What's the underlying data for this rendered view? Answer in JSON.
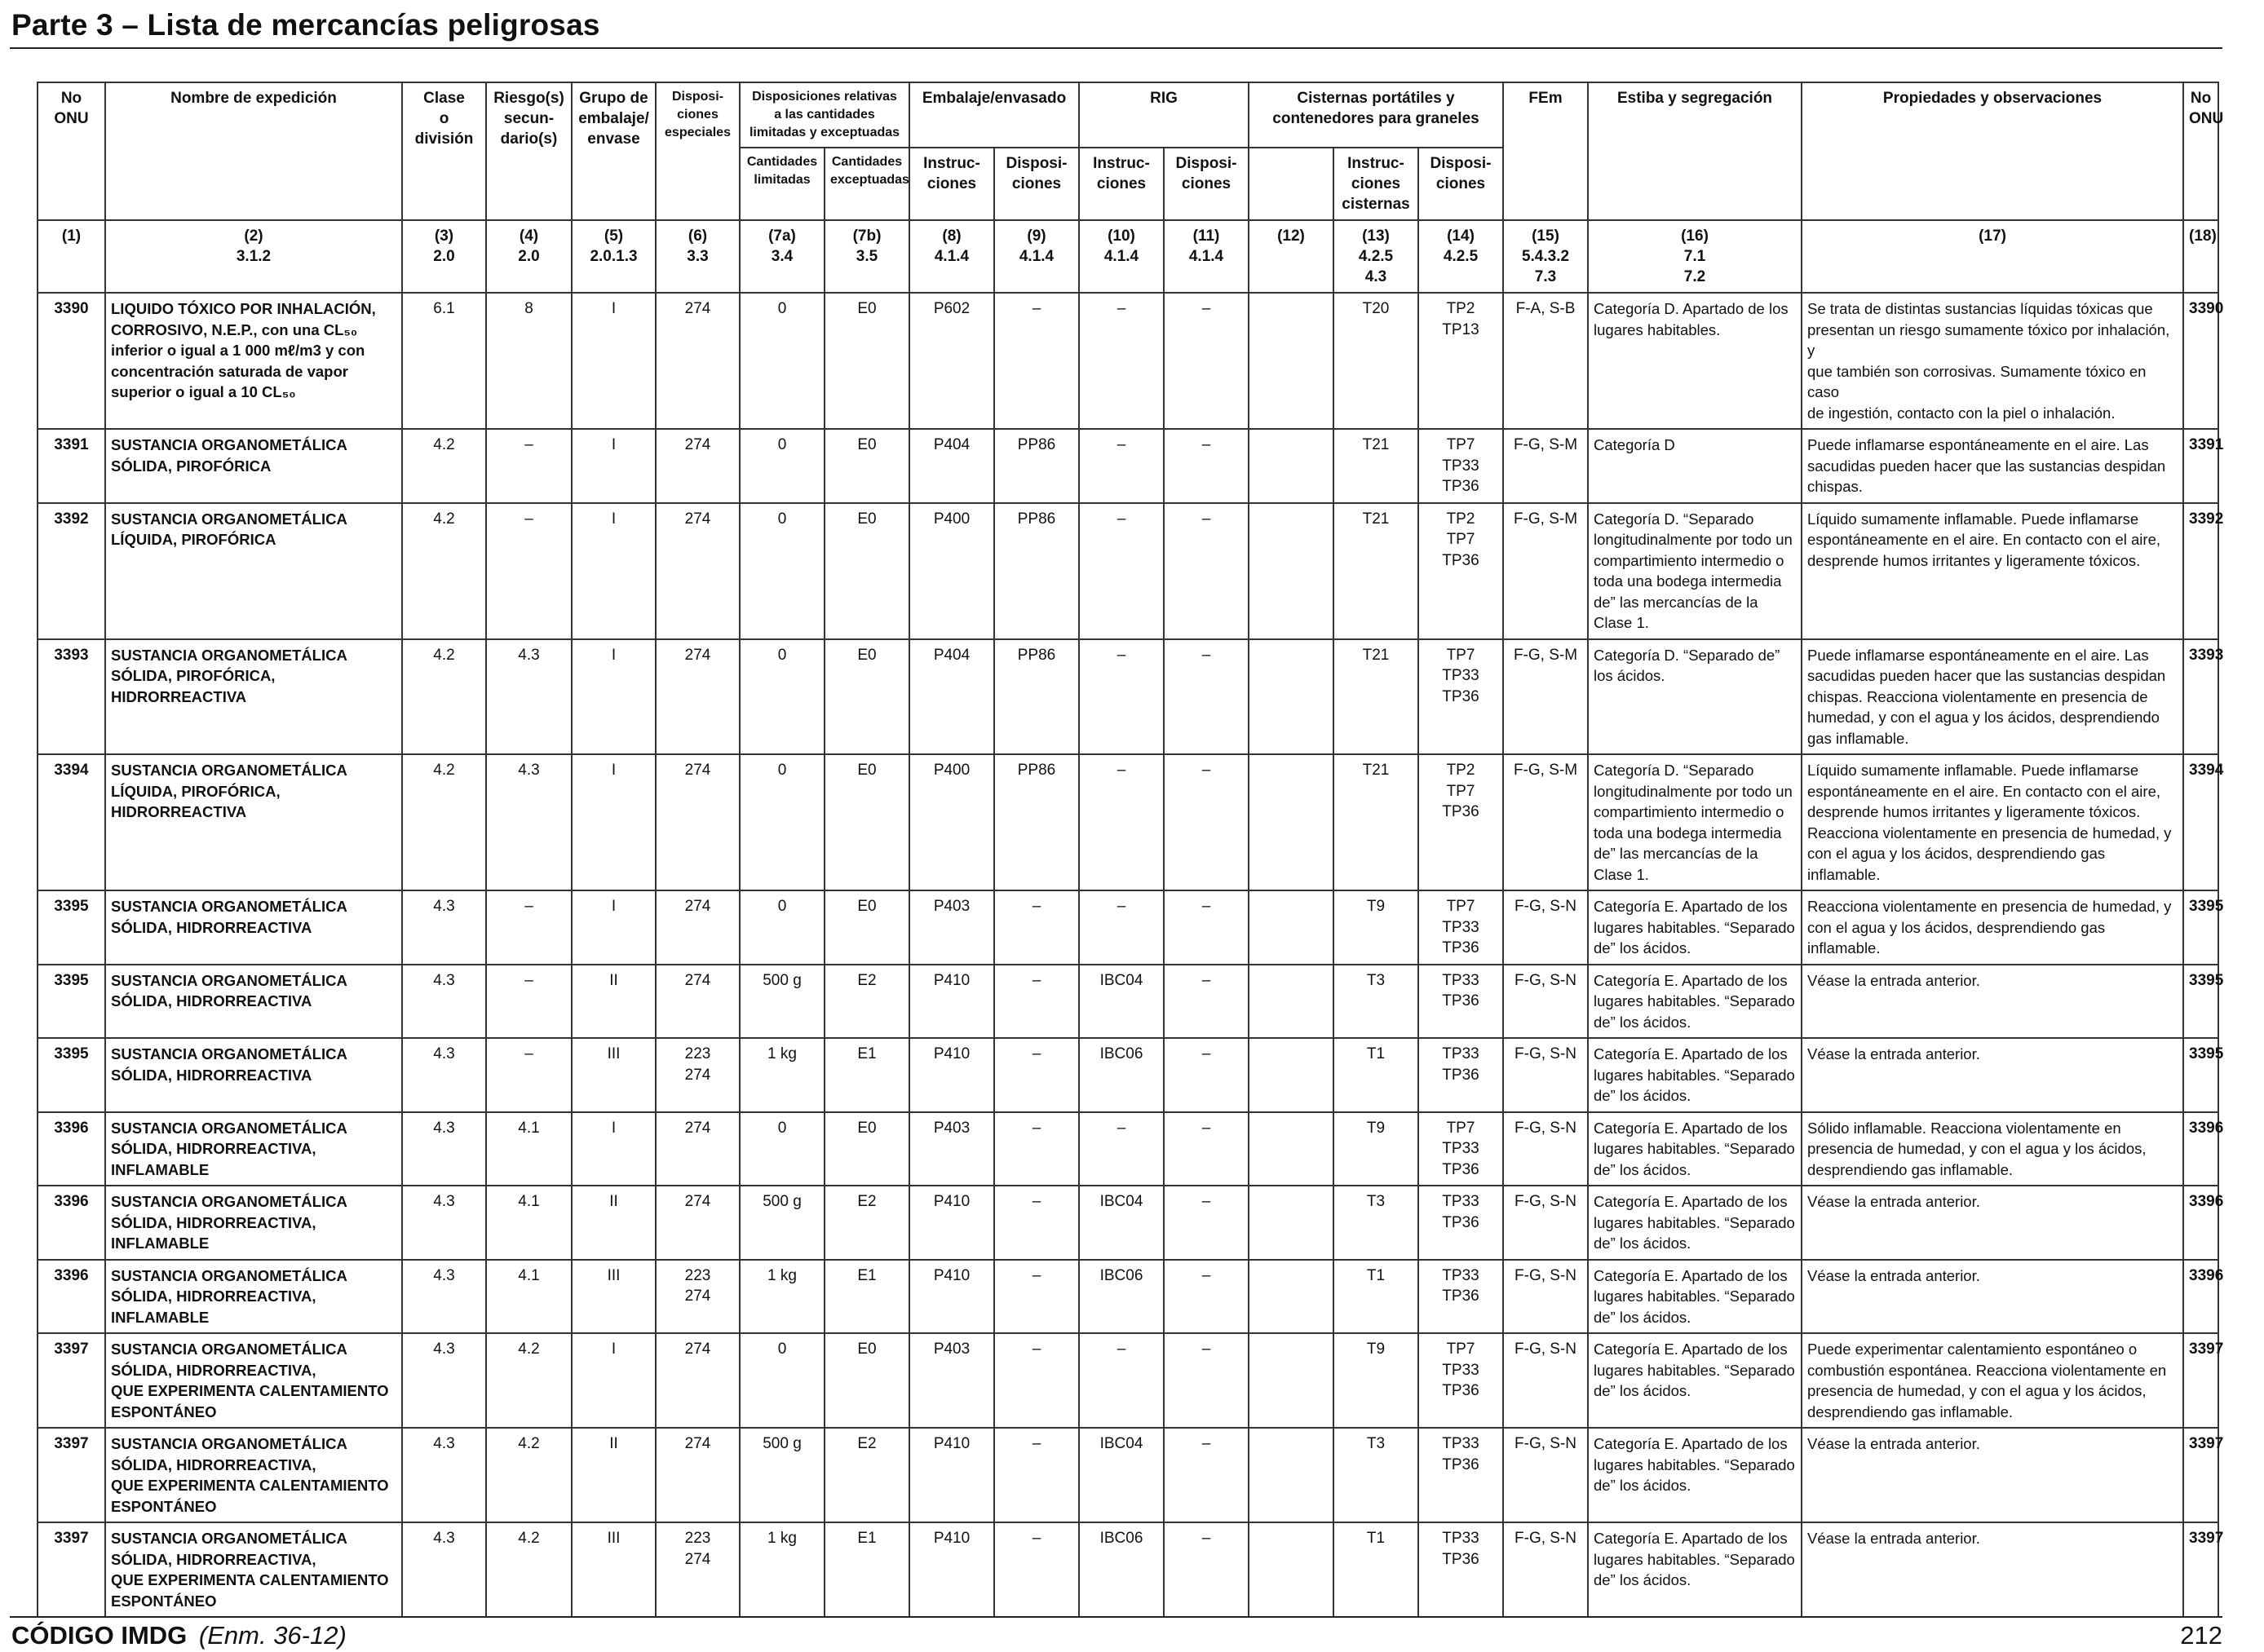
{
  "title": "Parte 3 – Lista de mercancías peligrosas",
  "header": {
    "row1": [
      "No\nONU",
      "Nombre de expedición",
      "Clase\no\ndivisión",
      "Riesgo(s)\nsecun-\ndario(s)",
      "Grupo de\nembalaje/\nenvase",
      "Disposi-\nciones\nespeciales",
      "Disposiciones relativas\na las cantidades\nlimitadas y exceptuadas",
      "Embalaje/envasado",
      "RIG",
      "Cisternas portátiles y\ncontenedores para graneles",
      "FEm",
      "Estiba y segregación",
      "Propiedades y observaciones",
      "No\nONU"
    ],
    "row2": [
      "Cantidades\nlimitadas",
      "Cantidades\nexceptuadas",
      "Instruc-\nciones",
      "Disposi-\nciones",
      "Instruc-\nciones",
      "Disposi-\nciones",
      "Instruc-\nciones\ncisternas",
      "Disposi-\nciones"
    ],
    "row3": [
      "(1)",
      "(2)\n3.1.2",
      "(3)\n2.0",
      "(4)\n2.0",
      "(5)\n2.0.1.3",
      "(6)\n3.3",
      "(7a)\n3.4",
      "(7b)\n3.5",
      "(8)\n4.1.4",
      "(9)\n4.1.4",
      "(10)\n4.1.4",
      "(11)\n4.1.4",
      "(12)",
      "(13)\n4.2.5\n4.3",
      "(14)\n4.2.5",
      "(15)\n5.4.3.2\n7.3",
      "(16)\n7.1\n7.2",
      "(17)",
      "(18)"
    ]
  },
  "rows": [
    {
      "un": "3390",
      "name": "LIQUIDO TÓXICO POR INHALACIÓN,\nCORROSIVO, N.E.P., con una CL₅₀\ninferior o igual a 1 000 mℓ/m3 y con\nconcentración saturada de vapor\nsuperior o igual a 10 CL₅₀",
      "cls": "6.1",
      "sub": "8",
      "pg": "I",
      "sp": "274",
      "lq": "0",
      "eq": "E0",
      "pi": "P602",
      "pp": "–",
      "ibc": "–",
      "ibcp": "–",
      "c12": "",
      "tank": "T20",
      "tankp": "TP2\nTP13",
      "ems": "F-A, S-B",
      "stow": "Categoría D. Apartado de los\nlugares habitables.",
      "props": "Se trata de distintas sustancias líquidas tóxicas que\npresentan un riesgo sumamente tóxico por inhalación, y\nque también son corrosivas. Sumamente tóxico en caso\nde ingestión, contacto con la piel o inhalación.",
      "un2": "3390"
    },
    {
      "un": "3391",
      "name": "SUSTANCIA ORGANOMETÁLICA\nSÓLIDA, PIROFÓRICA",
      "cls": "4.2",
      "sub": "–",
      "pg": "I",
      "sp": "274",
      "lq": "0",
      "eq": "E0",
      "pi": "P404",
      "pp": "PP86",
      "ibc": "–",
      "ibcp": "–",
      "c12": "",
      "tank": "T21",
      "tankp": "TP7\nTP33\nTP36",
      "ems": "F-G, S-M",
      "stow": "Categoría D",
      "props": "Puede inflamarse espontáneamente en el aire. Las\nsacudidas pueden hacer que las sustancias despidan\nchispas.",
      "un2": "3391"
    },
    {
      "un": "3392",
      "name": "SUSTANCIA ORGANOMETÁLICA\nLÍQUIDA, PIROFÓRICA",
      "cls": "4.2",
      "sub": "–",
      "pg": "I",
      "sp": "274",
      "lq": "0",
      "eq": "E0",
      "pi": "P400",
      "pp": "PP86",
      "ibc": "–",
      "ibcp": "–",
      "c12": "",
      "tank": "T21",
      "tankp": "TP2\nTP7\nTP36",
      "ems": "F-G, S-M",
      "stow": "Categoría D. “Separado\nlongitudinalmente por todo un\ncompartimiento intermedio o\ntoda una bodega intermedia\nde” las mercancías de la\nClase 1.",
      "props": "Líquido sumamente inflamable. Puede inflamarse\nespontáneamente en el aire. En contacto con el aire,\ndesprende humos irritantes y ligeramente tóxicos.",
      "un2": "3392"
    },
    {
      "un": "3393",
      "name": "SUSTANCIA ORGANOMETÁLICA\nSÓLIDA, PIROFÓRICA,\nHIDRORREACTIVA",
      "cls": "4.2",
      "sub": "4.3",
      "pg": "I",
      "sp": "274",
      "lq": "0",
      "eq": "E0",
      "pi": "P404",
      "pp": "PP86",
      "ibc": "–",
      "ibcp": "–",
      "c12": "",
      "tank": "T21",
      "tankp": "TP7\nTP33\nTP36",
      "ems": "F-G, S-M",
      "stow": "Categoría D. “Separado de”\nlos ácidos.",
      "props": "Puede inflamarse espontáneamente en el aire. Las\nsacudidas pueden hacer que las sustancias despidan\nchispas. Reacciona violentamente en presencia de\nhumedad, y con el agua y los ácidos, desprendiendo\ngas inflamable.",
      "un2": "3393"
    },
    {
      "un": "3394",
      "name": "SUSTANCIA ORGANOMETÁLICA\nLÍQUIDA, PIROFÓRICA,\nHIDRORREACTIVA",
      "cls": "4.2",
      "sub": "4.3",
      "pg": "I",
      "sp": "274",
      "lq": "0",
      "eq": "E0",
      "pi": "P400",
      "pp": "PP86",
      "ibc": "–",
      "ibcp": "–",
      "c12": "",
      "tank": "T21",
      "tankp": "TP2\nTP7\nTP36",
      "ems": "F-G, S-M",
      "stow": "Categoría D. “Separado\nlongitudinalmente por todo un\ncompartimiento intermedio o\ntoda una bodega intermedia\nde” las mercancías de la\nClase 1.",
      "props": "Líquido sumamente inflamable. Puede inflamarse\nespontáneamente en el aire. En contacto con el aire,\ndesprende humos irritantes y ligeramente tóxicos.\nReacciona violentamente en presencia de humedad, y\ncon el agua y los ácidos, desprendiendo gas inflamable.",
      "un2": "3394"
    },
    {
      "un": "3395",
      "name": "SUSTANCIA ORGANOMETÁLICA\nSÓLIDA, HIDRORREACTIVA",
      "cls": "4.3",
      "sub": "–",
      "pg": "I",
      "sp": "274",
      "lq": "0",
      "eq": "E0",
      "pi": "P403",
      "pp": "–",
      "ibc": "–",
      "ibcp": "–",
      "c12": "",
      "tank": "T9",
      "tankp": "TP7\nTP33\nTP36",
      "ems": "F-G, S-N",
      "stow": "Categoría E. Apartado de los\nlugares habitables. “Separado\nde” los ácidos.",
      "props": "Reacciona violentamente en presencia de humedad, y\ncon el agua y los ácidos, desprendiendo gas inflamable.",
      "un2": "3395"
    },
    {
      "un": "3395",
      "name": "SUSTANCIA ORGANOMETÁLICA\nSÓLIDA, HIDRORREACTIVA",
      "cls": "4.3",
      "sub": "–",
      "pg": "II",
      "sp": "274",
      "lq": "500 g",
      "eq": "E2",
      "pi": "P410",
      "pp": "–",
      "ibc": "IBC04",
      "ibcp": "–",
      "c12": "",
      "tank": "T3",
      "tankp": "TP33\nTP36",
      "ems": "F-G, S-N",
      "stow": "Categoría E. Apartado de los\nlugares habitables. “Separado\nde” los ácidos.",
      "props": "Véase la entrada anterior.",
      "un2": "3395"
    },
    {
      "un": "3395",
      "name": "SUSTANCIA ORGANOMETÁLICA\nSÓLIDA, HIDRORREACTIVA",
      "cls": "4.3",
      "sub": "–",
      "pg": "III",
      "sp": "223\n274",
      "lq": "1 kg",
      "eq": "E1",
      "pi": "P410",
      "pp": "–",
      "ibc": "IBC06",
      "ibcp": "–",
      "c12": "",
      "tank": "T1",
      "tankp": "TP33\nTP36",
      "ems": "F-G, S-N",
      "stow": "Categoría E. Apartado de los\nlugares habitables. “Separado\nde” los ácidos.",
      "props": "Véase la entrada anterior.",
      "un2": "3395"
    },
    {
      "un": "3396",
      "name": "SUSTANCIA ORGANOMETÁLICA\nSÓLIDA, HIDRORREACTIVA,\nINFLAMABLE",
      "cls": "4.3",
      "sub": "4.1",
      "pg": "I",
      "sp": "274",
      "lq": "0",
      "eq": "E0",
      "pi": "P403",
      "pp": "–",
      "ibc": "–",
      "ibcp": "–",
      "c12": "",
      "tank": "T9",
      "tankp": "TP7\nTP33\nTP36",
      "ems": "F-G, S-N",
      "stow": "Categoría E. Apartado de los\nlugares habitables. “Separado\nde” los ácidos.",
      "props": "Sólido inflamable. Reacciona violentamente en\npresencia de humedad, y con el agua y los ácidos,\ndesprendiendo gas inflamable.",
      "un2": "3396"
    },
    {
      "un": "3396",
      "name": "SUSTANCIA ORGANOMETÁLICA\nSÓLIDA, HIDRORREACTIVA,\nINFLAMABLE",
      "cls": "4.3",
      "sub": "4.1",
      "pg": "II",
      "sp": "274",
      "lq": "500 g",
      "eq": "E2",
      "pi": "P410",
      "pp": "–",
      "ibc": "IBC04",
      "ibcp": "–",
      "c12": "",
      "tank": "T3",
      "tankp": "TP33\nTP36",
      "ems": "F-G, S-N",
      "stow": "Categoría E. Apartado de los\nlugares habitables. “Separado\nde” los ácidos.",
      "props": "Véase la entrada anterior.",
      "un2": "3396"
    },
    {
      "un": "3396",
      "name": "SUSTANCIA ORGANOMETÁLICA\nSÓLIDA, HIDRORREACTIVA,\nINFLAMABLE",
      "cls": "4.3",
      "sub": "4.1",
      "pg": "III",
      "sp": "223\n274",
      "lq": "1 kg",
      "eq": "E1",
      "pi": "P410",
      "pp": "–",
      "ibc": "IBC06",
      "ibcp": "–",
      "c12": "",
      "tank": "T1",
      "tankp": "TP33\nTP36",
      "ems": "F-G, S-N",
      "stow": "Categoría E. Apartado de los\nlugares habitables. “Separado\nde” los ácidos.",
      "props": "Véase la entrada anterior.",
      "un2": "3396"
    },
    {
      "un": "3397",
      "name": "SUSTANCIA ORGANOMETÁLICA\nSÓLIDA, HIDRORREACTIVA,\nQUE EXPERIMENTA CALENTAMIENTO\nESPONTÁNEO",
      "cls": "4.3",
      "sub": "4.2",
      "pg": "I",
      "sp": "274",
      "lq": "0",
      "eq": "E0",
      "pi": "P403",
      "pp": "–",
      "ibc": "–",
      "ibcp": "–",
      "c12": "",
      "tank": "T9",
      "tankp": "TP7\nTP33\nTP36",
      "ems": "F-G, S-N",
      "stow": "Categoría E. Apartado de los\nlugares habitables. “Separado\nde” los ácidos.",
      "props": "Puede experimentar calentamiento espontáneo o\ncombustión espontánea. Reacciona violentamente en\npresencia de humedad, y con el agua y los ácidos,\ndesprendiendo gas inflamable.",
      "un2": "3397"
    },
    {
      "un": "3397",
      "name": "SUSTANCIA ORGANOMETÁLICA\nSÓLIDA, HIDRORREACTIVA,\nQUE EXPERIMENTA CALENTAMIENTO\nESPONTÁNEO",
      "cls": "4.3",
      "sub": "4.2",
      "pg": "II",
      "sp": "274",
      "lq": "500 g",
      "eq": "E2",
      "pi": "P410",
      "pp": "–",
      "ibc": "IBC04",
      "ibcp": "–",
      "c12": "",
      "tank": "T3",
      "tankp": "TP33\nTP36",
      "ems": "F-G, S-N",
      "stow": "Categoría E. Apartado de los\nlugares habitables. “Separado\nde” los ácidos.",
      "props": "Véase la entrada anterior.",
      "un2": "3397"
    },
    {
      "un": "3397",
      "name": "SUSTANCIA ORGANOMETÁLICA\nSÓLIDA, HIDRORREACTIVA,\nQUE EXPERIMENTA CALENTAMIENTO\nESPONTÁNEO",
      "cls": "4.3",
      "sub": "4.2",
      "pg": "III",
      "sp": "223\n274",
      "lq": "1 kg",
      "eq": "E1",
      "pi": "P410",
      "pp": "–",
      "ibc": "IBC06",
      "ibcp": "–",
      "c12": "",
      "tank": "T1",
      "tankp": "TP33\nTP36",
      "ems": "F-G, S-N",
      "stow": "Categoría E. Apartado de los\nlugares habitables. “Separado\nde” los ácidos.",
      "props": "Véase la entrada anterior.",
      "un2": "3397"
    }
  ],
  "footer": {
    "code": "CÓDIGO IMDG",
    "edition": "(Enm. 36-12)",
    "page": "212"
  }
}
